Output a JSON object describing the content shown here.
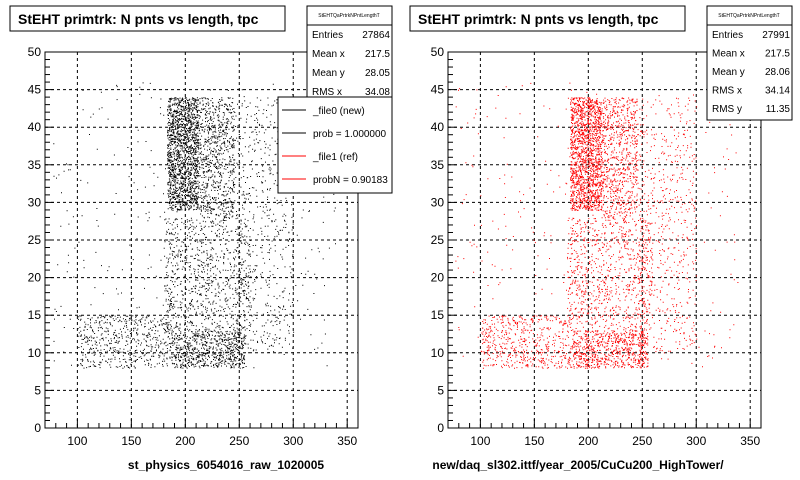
{
  "window": {
    "background": "#ffffff"
  },
  "chart_data": [
    {
      "type": "scatter",
      "title": "StEHT primtrk: N pnts vs length, tpc",
      "xlabel": "st_physics_6054016_raw_1020005",
      "ylabel": "",
      "xlim": [
        70,
        360
      ],
      "ylim": [
        0,
        50
      ],
      "x_ticks": [
        100,
        150,
        200,
        250,
        300,
        350
      ],
      "y_ticks": [
        0,
        5,
        10,
        15,
        20,
        25,
        30,
        35,
        40,
        45,
        50
      ],
      "grid": true,
      "marker_color": "#000000",
      "stats": {
        "name": "StEHTQaPrtrkNPntLengthT",
        "rows": [
          {
            "label": "Entries",
            "value": "27864"
          },
          {
            "label": "Mean x",
            "value": "217.5"
          },
          {
            "label": "Mean y",
            "value": "28.05"
          },
          {
            "label": "RMS x",
            "value": "34.08"
          }
        ]
      },
      "legend": {
        "placement": "top-right",
        "entries": [
          {
            "label": "_file0 (new)",
            "color": "#000000"
          },
          {
            "label": "prob = 1.000000",
            "color": "#000000"
          },
          {
            "label": "_file1 (ref)",
            "color": "#ff0000"
          },
          {
            "label": "probN = 0.90183",
            "color": "#ff0000"
          }
        ]
      },
      "density_regions": [
        {
          "x": [
            183,
            212
          ],
          "y": [
            29,
            44
          ],
          "weight": 0.3
        },
        {
          "x": [
            212,
            245
          ],
          "y": [
            28,
            44
          ],
          "weight": 0.14
        },
        {
          "x": [
            185,
            255
          ],
          "y": [
            8,
            13
          ],
          "weight": 0.14
        },
        {
          "x": [
            180,
            260
          ],
          "y": [
            13,
            28
          ],
          "weight": 0.16
        },
        {
          "x": [
            100,
            185
          ],
          "y": [
            8,
            15
          ],
          "weight": 0.1
        },
        {
          "x": [
            245,
            300
          ],
          "y": [
            10,
            44
          ],
          "weight": 0.1
        },
        {
          "x": [
            75,
            340
          ],
          "y": [
            8,
            46
          ],
          "weight": 0.06
        }
      ]
    },
    {
      "type": "scatter",
      "title": "StEHT primtrk: N pnts vs length, tpc",
      "xlabel": "new/daq_sl302.ittf/year_2005/CuCu200_HighTower/",
      "ylabel": "",
      "xlim": [
        70,
        360
      ],
      "ylim": [
        0,
        50
      ],
      "x_ticks": [
        100,
        150,
        200,
        250,
        300,
        350
      ],
      "y_ticks": [
        0,
        5,
        10,
        15,
        20,
        25,
        30,
        35,
        40,
        45,
        50
      ],
      "grid": true,
      "marker_color": "#ff0000",
      "stats": {
        "name": "StEHTQaPrtrkNPntLengthT",
        "rows": [
          {
            "label": "Entries",
            "value": "27991"
          },
          {
            "label": "Mean x",
            "value": "217.5"
          },
          {
            "label": "Mean y",
            "value": "28.06"
          },
          {
            "label": "RMS x",
            "value": "34.14"
          },
          {
            "label": "RMS y",
            "value": "11.35"
          }
        ]
      },
      "density_regions": [
        {
          "x": [
            183,
            212
          ],
          "y": [
            29,
            44
          ],
          "weight": 0.3
        },
        {
          "x": [
            212,
            245
          ],
          "y": [
            28,
            44
          ],
          "weight": 0.14
        },
        {
          "x": [
            185,
            255
          ],
          "y": [
            8,
            13
          ],
          "weight": 0.14
        },
        {
          "x": [
            180,
            260
          ],
          "y": [
            13,
            28
          ],
          "weight": 0.16
        },
        {
          "x": [
            100,
            185
          ],
          "y": [
            8,
            15
          ],
          "weight": 0.1
        },
        {
          "x": [
            245,
            300
          ],
          "y": [
            10,
            44
          ],
          "weight": 0.1
        },
        {
          "x": [
            75,
            340
          ],
          "y": [
            8,
            46
          ],
          "weight": 0.06
        }
      ]
    }
  ]
}
